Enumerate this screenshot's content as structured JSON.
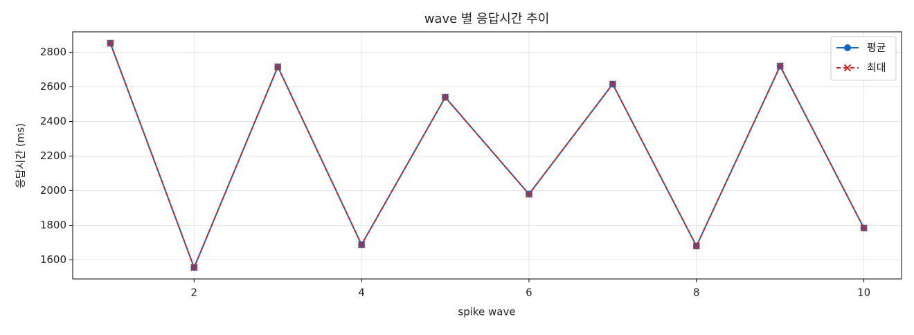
{
  "chart_data": {
    "type": "line",
    "title": "wave 별 응답시간 추이",
    "x_label": "spike wave",
    "y_label": "응답시간 (ms)",
    "x": [
      1,
      2,
      3,
      4,
      5,
      6,
      7,
      8,
      9,
      10
    ],
    "series": [
      {
        "name": "평균",
        "color": "#1565c0",
        "dash": false,
        "marker": "circle",
        "values": [
          2852,
          1556,
          2716,
          1688,
          2540,
          1980,
          2616,
          1680,
          2720,
          1784
        ]
      },
      {
        "name": "최대",
        "color": "#c62828",
        "dash": true,
        "marker": "x",
        "values": [
          2852,
          1556,
          2716,
          1688,
          2540,
          1980,
          2616,
          1680,
          2720,
          1784
        ]
      }
    ],
    "xlim": [
      0.55,
      10.45
    ],
    "xticks": [
      2,
      4,
      6,
      8,
      10
    ],
    "ylim": [
      1490,
      2918
    ],
    "yticks": [
      1600,
      1800,
      2000,
      2200,
      2400,
      2600,
      2800
    ],
    "grid": true,
    "legend": "upper right"
  }
}
